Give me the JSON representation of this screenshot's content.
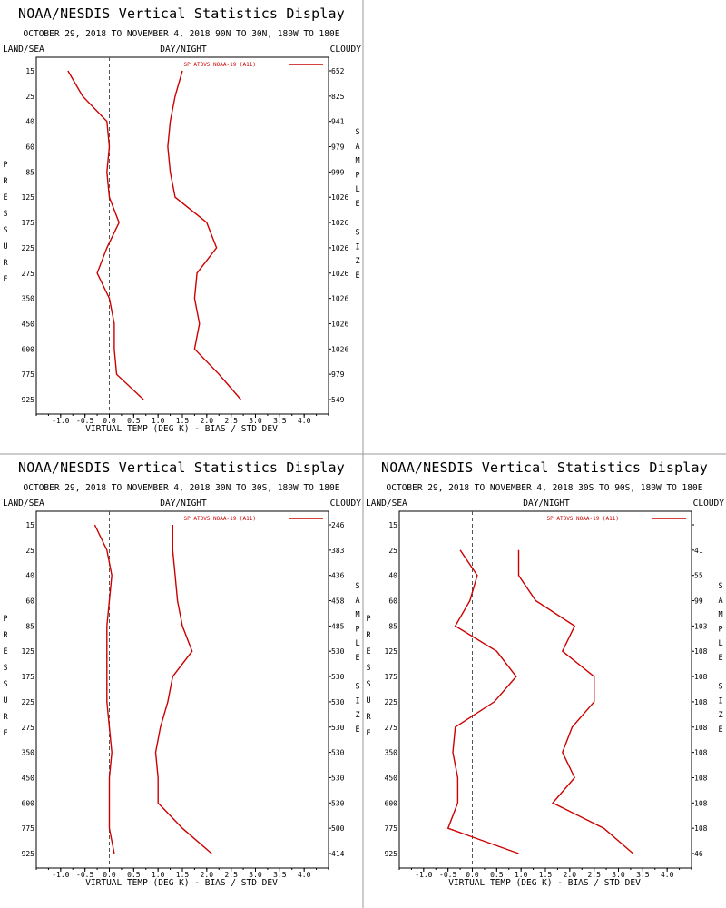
{
  "panels": [
    {
      "title": "NOAA/NESDIS Vertical Statistics Display",
      "subtitle": "OCTOBER 29, 2018 TO NOVEMBER 4, 2018  90N TO 30N, 180W TO 180E",
      "hdr_left": "LAND/SEA",
      "hdr_mid": "DAY/NIGHT",
      "hdr_right": "CLOUDY",
      "legend": "SP ATOVS NOAA-19 (A11)",
      "left_label": [
        "P",
        "R",
        "E",
        "S",
        "S",
        "U",
        "R",
        "E"
      ],
      "right_label": [
        "S",
        "A",
        "M",
        "P",
        "L",
        "E",
        "",
        "S",
        "I",
        "Z",
        "E"
      ],
      "chart_data": {
        "type": "line",
        "xlabel": "VIRTUAL TEMP (DEG K) - BIAS / STD DEV",
        "xlim": [
          -1.5,
          4.5
        ],
        "xticks": [
          "-1.0",
          "-0.5",
          "0.0",
          "0.5",
          "1.0",
          "1.5",
          "2.0",
          "2.5",
          "3.0",
          "3.5",
          "4.0"
        ],
        "pressure_levels": [
          "15",
          "25",
          "40",
          "60",
          "85",
          "125",
          "175",
          "225",
          "275",
          "350",
          "450",
          "600",
          "775",
          "925"
        ],
        "sample_size": [
          "652",
          "825",
          "941",
          "979",
          "999",
          "1026",
          "1026",
          "1026",
          "1026",
          "1026",
          "1026",
          "1026",
          "979",
          "549"
        ],
        "series": [
          {
            "values": [
              -0.85,
              -0.55,
              -0.05,
              0.0,
              -0.05,
              0.0,
              0.2,
              -0.05,
              -0.25,
              0.0,
              0.1,
              0.1,
              0.15,
              0.7
            ]
          },
          {
            "values": [
              1.5,
              1.35,
              1.25,
              1.2,
              1.25,
              1.35,
              2.0,
              2.2,
              1.8,
              1.75,
              1.85,
              1.75,
              2.25,
              2.7
            ]
          }
        ]
      }
    },
    {
      "title": "NOAA/NESDIS Vertical Statistics Display",
      "subtitle": "OCTOBER 29, 2018 TO NOVEMBER 4, 2018  30N TO 30S, 180W TO 180E",
      "hdr_left": "LAND/SEA",
      "hdr_mid": "DAY/NIGHT",
      "hdr_right": "CLOUDY",
      "legend": "SP ATOVS NOAA-19 (A11)",
      "left_label": [
        "P",
        "R",
        "E",
        "S",
        "S",
        "U",
        "R",
        "E"
      ],
      "right_label": [
        "S",
        "A",
        "M",
        "P",
        "L",
        "E",
        "",
        "S",
        "I",
        "Z",
        "E"
      ],
      "chart_data": {
        "type": "line",
        "xlabel": "VIRTUAL TEMP (DEG K) - BIAS / STD DEV",
        "xlim": [
          -1.5,
          4.5
        ],
        "xticks": [
          "-1.0",
          "-0.5",
          "0.0",
          "0.5",
          "1.0",
          "1.5",
          "2.0",
          "2.5",
          "3.0",
          "3.5",
          "4.0"
        ],
        "pressure_levels": [
          "15",
          "25",
          "40",
          "60",
          "85",
          "125",
          "175",
          "225",
          "275",
          "350",
          "450",
          "600",
          "775",
          "925"
        ],
        "sample_size": [
          "246",
          "383",
          "436",
          "458",
          "485",
          "530",
          "530",
          "530",
          "530",
          "530",
          "530",
          "530",
          "500",
          "414"
        ],
        "series": [
          {
            "values": [
              -0.3,
              -0.05,
              0.05,
              0.0,
              -0.05,
              -0.05,
              -0.05,
              -0.05,
              0.0,
              0.05,
              0.0,
              0.0,
              0.0,
              0.1
            ]
          },
          {
            "values": [
              1.3,
              1.3,
              1.35,
              1.4,
              1.5,
              1.7,
              1.3,
              1.2,
              1.05,
              0.95,
              1.0,
              1.0,
              1.5,
              2.1
            ]
          }
        ]
      }
    },
    {
      "title": "NOAA/NESDIS Vertical Statistics Display",
      "subtitle": "OCTOBER 29, 2018 TO NOVEMBER 4, 2018  30S TO 90S, 180W TO 180E",
      "hdr_left": "LAND/SEA",
      "hdr_mid": "DAY/NIGHT",
      "hdr_right": "CLOUDY",
      "legend": "SP ATOVS NOAA-19 (A11)",
      "left_label": [
        "P",
        "R",
        "E",
        "S",
        "S",
        "U",
        "R",
        "E"
      ],
      "right_label": [
        "S",
        "A",
        "M",
        "P",
        "L",
        "E",
        "",
        "S",
        "I",
        "Z",
        "E"
      ],
      "chart_data": {
        "type": "line",
        "xlabel": "VIRTUAL TEMP (DEG K) - BIAS / STD DEV",
        "xlim": [
          -1.5,
          4.5
        ],
        "xticks": [
          "-1.0",
          "-0.5",
          "0.0",
          "0.5",
          "1.0",
          "1.5",
          "2.0",
          "2.5",
          "3.0",
          "3.5",
          "4.0"
        ],
        "pressure_levels": [
          "15",
          "25",
          "40",
          "60",
          "85",
          "125",
          "175",
          "225",
          "275",
          "350",
          "450",
          "600",
          "775",
          "925"
        ],
        "sample_size": [
          "",
          "41",
          "55",
          "99",
          "103",
          "108",
          "108",
          "108",
          "108",
          "108",
          "108",
          "108",
          "108",
          "46"
        ],
        "series": [
          {
            "values": [
              null,
              -0.25,
              0.1,
              -0.05,
              -0.35,
              0.5,
              0.9,
              0.45,
              -0.35,
              -0.4,
              -0.3,
              -0.3,
              -0.5,
              0.95
            ]
          },
          {
            "values": [
              null,
              0.95,
              0.95,
              1.3,
              2.1,
              1.85,
              2.5,
              2.5,
              2.05,
              1.85,
              2.1,
              1.65,
              2.7,
              3.3
            ]
          }
        ]
      }
    }
  ]
}
